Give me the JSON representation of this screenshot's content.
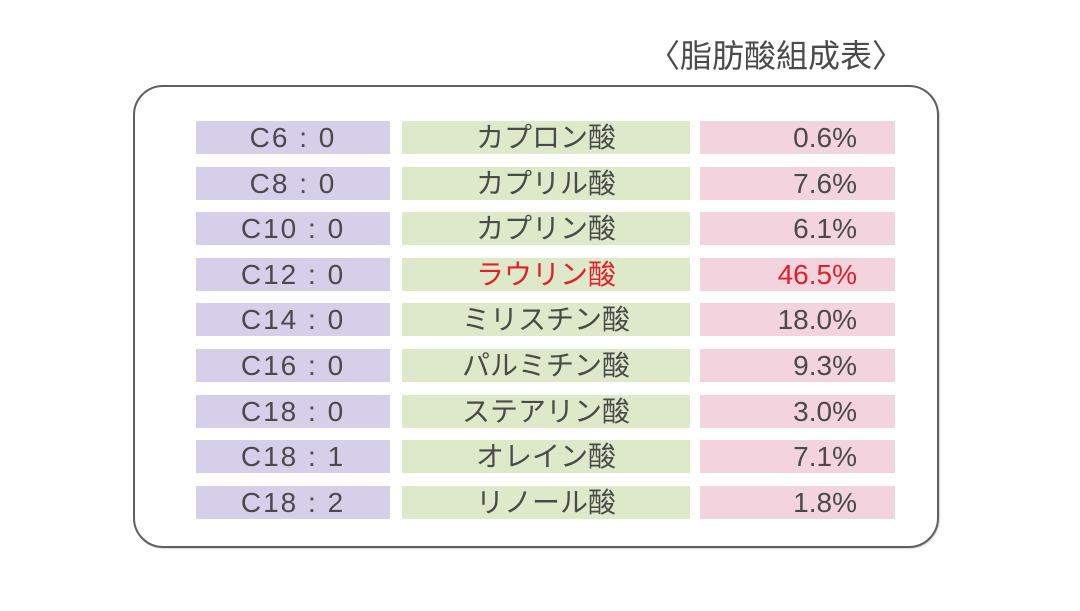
{
  "title": "〈脂肪酸組成表〉",
  "colors": {
    "code_bg": "#d6cfe9",
    "name_bg": "#dde9c9",
    "pct_bg": "#f3d4de",
    "text": "#4a4a4a",
    "highlight": "#e0202a",
    "border": "#5f5f5f"
  },
  "rows": [
    {
      "code": "C6 : 0",
      "name": "カプロン酸",
      "pct": "0.6%",
      "highlight": false
    },
    {
      "code": "C8 : 0",
      "name": "カプリル酸",
      "pct": "7.6%",
      "highlight": false
    },
    {
      "code": "C10 : 0",
      "name": "カプリン酸",
      "pct": "6.1%",
      "highlight": false
    },
    {
      "code": "C12 : 0",
      "name": "ラウリン酸",
      "pct": "46.5%",
      "highlight": true
    },
    {
      "code": "C14 : 0",
      "name": "ミリスチン酸",
      "pct": "18.0%",
      "highlight": false
    },
    {
      "code": "C16 : 0",
      "name": "パルミチン酸",
      "pct": "9.3%",
      "highlight": false
    },
    {
      "code": "C18 : 0",
      "name": "ステアリン酸",
      "pct": "3.0%",
      "highlight": false
    },
    {
      "code": "C18 : 1",
      "name": "オレイン酸",
      "pct": "7.1%",
      "highlight": false
    },
    {
      "code": "C18 : 2",
      "name": "リノール酸",
      "pct": "1.8%",
      "highlight": false
    }
  ]
}
